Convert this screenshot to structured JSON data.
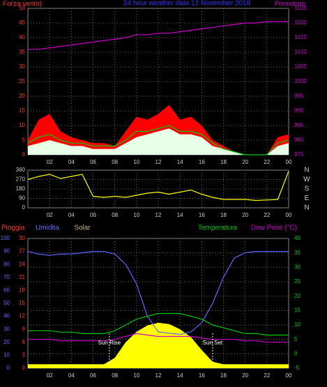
{
  "chart_data": [
    {
      "type": "line",
      "title": "24 hour weather data 12 November 2018",
      "y_label": "Forza vento)",
      "y2_label": "Pressione",
      "x": [
        0,
        1,
        2,
        3,
        4,
        5,
        6,
        7,
        8,
        9,
        10,
        11,
        12,
        13,
        14,
        15,
        16,
        17,
        18,
        19,
        20,
        21,
        22,
        23,
        24
      ],
      "xlim": [
        0,
        24
      ],
      "xticks": [
        {
          "value": 2,
          "label": "02"
        },
        {
          "value": 4,
          "label": "04"
        },
        {
          "value": 6,
          "label": "06"
        },
        {
          "value": 8,
          "label": "08"
        },
        10,
        12,
        14,
        16,
        18,
        20,
        22,
        {
          "value": 24,
          "label": "00"
        }
      ],
      "ylim": [
        0,
        50
      ],
      "yticks": [
        0,
        5,
        10,
        15,
        20,
        25,
        30,
        35,
        40,
        45,
        50
      ],
      "y2lim": [
        975,
        1025
      ],
      "y2ticks": [
        975,
        980,
        985,
        990,
        995,
        1000,
        1005,
        1010,
        1015,
        1020,
        1025
      ],
      "grid": true,
      "series": [
        {
          "color": "#ff0000",
          "style": "area",
          "axis": "y",
          "values": [
            5,
            12,
            14,
            8,
            6,
            5,
            4,
            4,
            3,
            8,
            13,
            12,
            14,
            17,
            12,
            13,
            10,
            5,
            3,
            1,
            0,
            0,
            0,
            6,
            7
          ]
        },
        {
          "color": "#e8ffe8",
          "style": "area",
          "axis": "y",
          "values": [
            3,
            4,
            5,
            4,
            3,
            3,
            2,
            2,
            2,
            4,
            6,
            7,
            8,
            9,
            7,
            7,
            6,
            3,
            2,
            1,
            0,
            0,
            0,
            3,
            4
          ]
        },
        {
          "color": "#00cc00",
          "style": "line",
          "axis": "y",
          "values": [
            4,
            6,
            7,
            5,
            4,
            4,
            3,
            3,
            3,
            5,
            8,
            8,
            9,
            10,
            8,
            8,
            7,
            4,
            2,
            1,
            0,
            0,
            0,
            4,
            5
          ]
        },
        {
          "color": "#cc00cc",
          "style": "line",
          "axis": "y2",
          "values": [
            1011,
            1011,
            1011.5,
            1012,
            1012.5,
            1013,
            1013.5,
            1014,
            1014.5,
            1015,
            1016,
            1016,
            1016.5,
            1016.5,
            1017,
            1017.5,
            1018,
            1018.5,
            1019,
            1019.5,
            1020,
            1020,
            1020.5,
            1020.5,
            1020.5
          ]
        }
      ]
    },
    {
      "type": "line",
      "x": [
        0,
        1,
        2,
        3,
        4,
        5,
        6,
        7,
        8,
        9,
        10,
        11,
        12,
        13,
        14,
        15,
        16,
        17,
        18,
        19,
        20,
        21,
        22,
        23,
        24
      ],
      "xlim": [
        0,
        24
      ],
      "xticks": [
        {
          "value": 2,
          "label": "02"
        },
        {
          "value": 4,
          "label": "04"
        },
        {
          "value": 6,
          "label": "06"
        },
        {
          "value": 8,
          "label": "08"
        },
        10,
        12,
        14,
        16,
        18,
        20,
        22,
        {
          "value": 24,
          "label": "00"
        }
      ],
      "ylim": [
        0,
        360
      ],
      "yticks": [
        0,
        90,
        180,
        270,
        360
      ],
      "direction_labels": [
        "N",
        "E",
        "S",
        "W",
        "N"
      ],
      "grid": true,
      "series": [
        {
          "color": "#ffff00",
          "style": "line",
          "axis": "y",
          "values": [
            270,
            300,
            320,
            280,
            300,
            320,
            110,
            100,
            110,
            100,
            120,
            140,
            150,
            130,
            150,
            170,
            130,
            100,
            80,
            80,
            80,
            70,
            75,
            80,
            350
          ]
        }
      ]
    },
    {
      "type": "line",
      "y3_label": "Pioggia",
      "x": [
        0,
        1,
        2,
        3,
        4,
        5,
        6,
        7,
        8,
        9,
        10,
        11,
        12,
        13,
        14,
        15,
        16,
        17,
        18,
        19,
        20,
        21,
        22,
        23,
        24
      ],
      "xlim": [
        0,
        24
      ],
      "xticks": [
        {
          "value": 2,
          "label": "02"
        },
        {
          "value": 4,
          "label": "04"
        },
        {
          "value": 6,
          "label": "06"
        },
        {
          "value": 8,
          "label": "08"
        },
        10,
        12,
        14,
        16,
        18,
        20,
        22,
        {
          "value": 24,
          "label": "00"
        }
      ],
      "ylim": [
        0,
        100
      ],
      "yticks": [
        0,
        10,
        20,
        30,
        40,
        50,
        60,
        70,
        80,
        90,
        100
      ],
      "y3lim": [
        0,
        30
      ],
      "y3ticks": [
        0,
        3,
        6,
        9,
        12,
        15,
        18,
        21,
        24,
        27,
        30
      ],
      "y2lim": [
        -5,
        40
      ],
      "y2ticks": [
        -5,
        0,
        5,
        10,
        15,
        20,
        25,
        30,
        35,
        40
      ],
      "grid": true,
      "series": [
        {
          "name": "Solar",
          "color": "#ffff00",
          "legend_color": "#c8b48c",
          "style": "area",
          "axis": "y",
          "values": [
            3,
            3,
            3,
            3,
            3,
            3,
            3,
            3,
            8,
            20,
            28,
            33,
            35,
            34,
            30,
            24,
            14,
            5,
            3,
            3,
            3,
            3,
            3,
            3,
            3
          ]
        },
        {
          "name": "Umidita",
          "color": "#6666ff",
          "style": "line",
          "axis": "y",
          "values": [
            90,
            88,
            87,
            88,
            88,
            89,
            90,
            90,
            88,
            80,
            65,
            40,
            28,
            27,
            26,
            28,
            35,
            50,
            70,
            85,
            89,
            90,
            90,
            90,
            90
          ]
        },
        {
          "name": "Temperatura",
          "color": "#00cc00",
          "style": "line",
          "axis": "y2",
          "values": [
            8,
            8,
            8,
            7.5,
            7.5,
            7,
            7,
            7,
            8,
            10,
            12,
            13,
            14,
            14,
            14,
            13,
            12,
            10,
            9,
            8,
            7,
            7,
            6.5,
            6.5,
            6.5
          ]
        },
        {
          "name": "Dew Point (°C)",
          "color": "#cc00cc",
          "style": "line",
          "axis": "y2",
          "values": [
            5,
            5,
            5,
            4.5,
            4.5,
            4.5,
            4.5,
            4.5,
            5,
            6,
            7,
            6.5,
            6,
            6,
            6,
            6,
            5.5,
            5,
            5,
            5,
            4.5,
            4.5,
            4,
            4,
            4
          ]
        }
      ],
      "annotations": [
        {
          "text": "Sun Rise",
          "x": 7.5
        },
        {
          "text": "Sun Set",
          "x": 17
        }
      ]
    }
  ]
}
